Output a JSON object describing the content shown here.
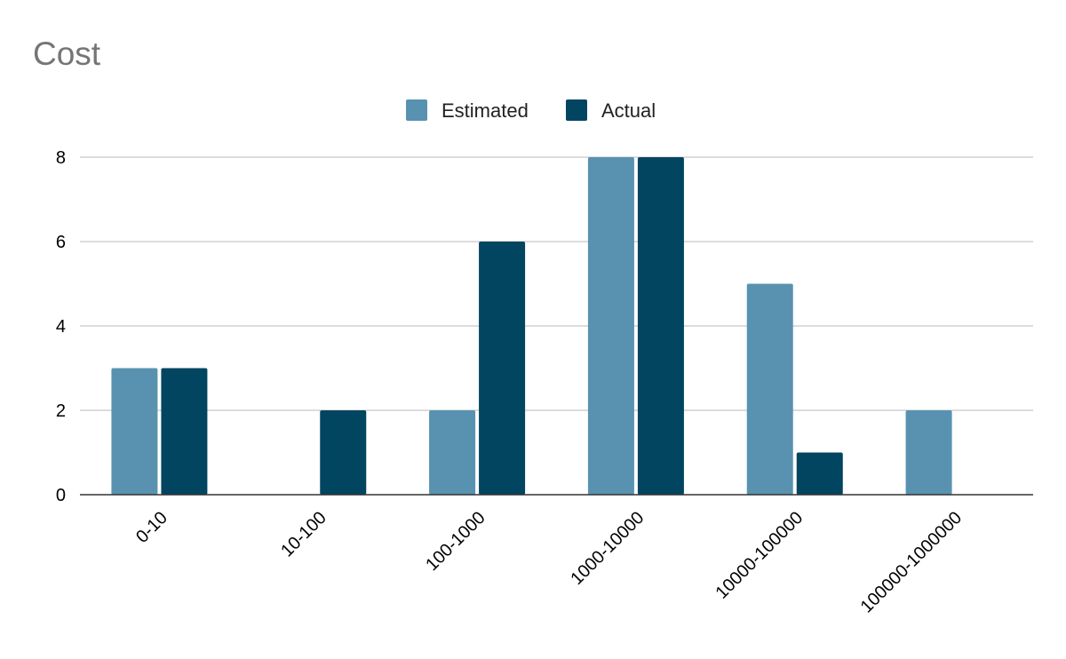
{
  "chart_data": {
    "type": "bar",
    "title": "Cost",
    "xlabel": "",
    "ylabel": "",
    "categories": [
      "0-10",
      "10-100",
      "100-1000",
      "1000-10000",
      "10000-100000",
      "100000-1000000"
    ],
    "series": [
      {
        "name": "Estimated",
        "color": "#5892b0",
        "values": [
          3,
          0,
          2,
          8,
          5,
          2
        ]
      },
      {
        "name": "Actual",
        "color": "#024561",
        "values": [
          3,
          2,
          6,
          8,
          1,
          0
        ]
      }
    ],
    "ylim": [
      0,
      8
    ],
    "yticks": [
      "0",
      "2",
      "4",
      "6",
      "8"
    ],
    "grid": true,
    "legend_position": "top-center"
  }
}
